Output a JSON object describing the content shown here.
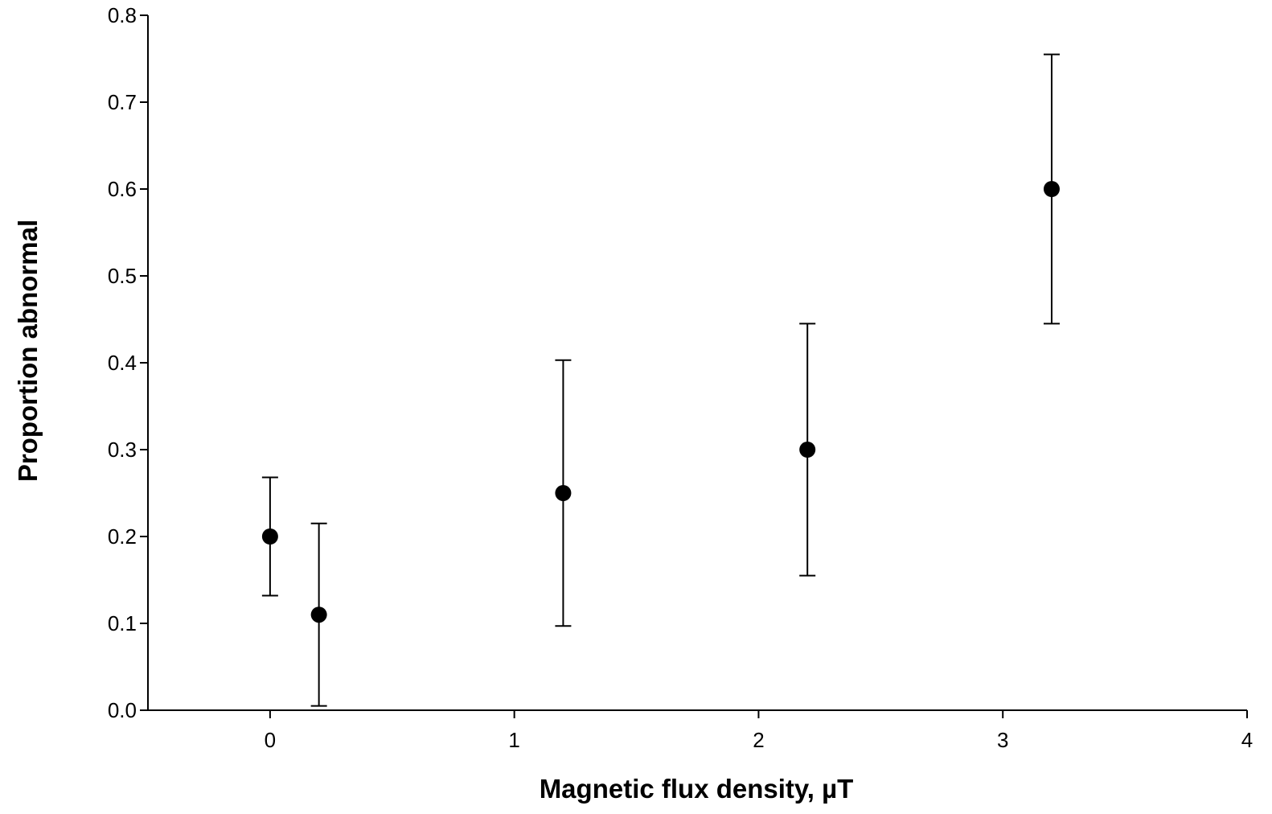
{
  "chart_data": {
    "type": "scatter",
    "title": "",
    "xlabel": "Magnetic flux density, µT",
    "ylabel": "Proportion abnormal",
    "xlim": [
      -0.5,
      4
    ],
    "ylim": [
      0,
      0.8
    ],
    "x_ticks": [
      0,
      1,
      2,
      3,
      4
    ],
    "x_tick_labels": [
      "0",
      "1",
      "2",
      "3",
      "4"
    ],
    "y_ticks": [
      0.0,
      0.1,
      0.2,
      0.3,
      0.4,
      0.5,
      0.6,
      0.7,
      0.8
    ],
    "y_tick_labels": [
      "0.0",
      "0.1",
      "0.2",
      "0.3",
      "0.4",
      "0.5",
      "0.6",
      "0.7",
      "0.8"
    ],
    "grid": false,
    "legend": "none",
    "marker_color": "#000000",
    "points": [
      {
        "x": 0.0,
        "y": 0.2,
        "lower": 0.132,
        "upper": 0.268
      },
      {
        "x": 0.2,
        "y": 0.11,
        "lower": 0.005,
        "upper": 0.215
      },
      {
        "x": 1.2,
        "y": 0.25,
        "lower": 0.097,
        "upper": 0.403
      },
      {
        "x": 2.2,
        "y": 0.3,
        "lower": 0.155,
        "upper": 0.445
      },
      {
        "x": 3.2,
        "y": 0.6,
        "lower": 0.445,
        "upper": 0.755
      }
    ]
  }
}
